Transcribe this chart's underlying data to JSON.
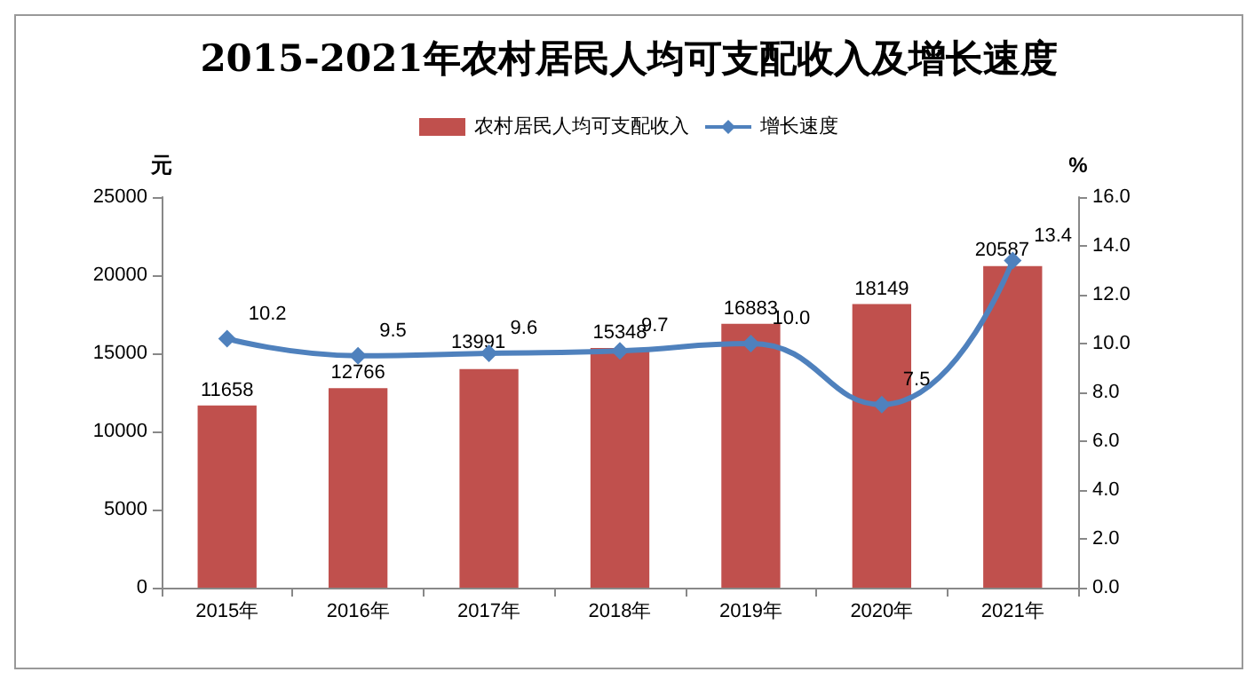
{
  "chart_data": {
    "type": "bar",
    "title": "2015-2021年农村居民人均可支配收入及增长速度",
    "categories": [
      "2015年",
      "2016年",
      "2017年",
      "2018年",
      "2019年",
      "2020年",
      "2021年"
    ],
    "series": [
      {
        "name": "农村居民人均可支配收入",
        "type": "bar",
        "color": "#c0504d",
        "values": [
          11658,
          12766,
          13991,
          15348,
          16883,
          18149,
          20587
        ]
      },
      {
        "name": "增长速度",
        "type": "line",
        "axis": "y2",
        "color": "#4f81bd",
        "marker": "diamond",
        "values": [
          10.2,
          9.5,
          9.6,
          9.7,
          10.0,
          7.5,
          13.4
        ],
        "value_labels": [
          "10.2",
          "9.5",
          "9.6",
          "9.7",
          "10.0",
          "7.5",
          "13.4"
        ]
      }
    ],
    "data_labels": true,
    "ylabel": "元",
    "y2label": "%",
    "ylim": [
      0,
      25000
    ],
    "yticks": [
      0,
      5000,
      10000,
      15000,
      20000,
      25000
    ],
    "y2lim": [
      0,
      16
    ],
    "y2ticks": [
      {
        "value": 0,
        "label": "0.0"
      },
      {
        "value": 2,
        "label": "2.0"
      },
      {
        "value": 4,
        "label": "4.0"
      },
      {
        "value": 6,
        "label": "6.0"
      },
      {
        "value": 8,
        "label": "8.0"
      },
      {
        "value": 10,
        "label": "10.0"
      },
      {
        "value": 12,
        "label": "12.0"
      },
      {
        "value": 14,
        "label": "14.0"
      },
      {
        "value": 16,
        "label": "16.0"
      }
    ],
    "grid": false,
    "legend": "top"
  }
}
